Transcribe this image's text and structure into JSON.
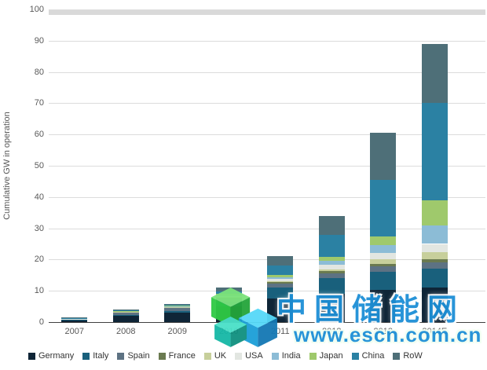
{
  "watermark": {
    "title": "中国储能网",
    "url": "www.escn.com.cn",
    "accent_blue": "#1d8fd6",
    "logo": "isometric-cubes"
  },
  "chart_data": {
    "type": "bar",
    "stacked": true,
    "title": "",
    "xlabel": "",
    "ylabel": "Cumulative GW in operation",
    "ylim": [
      0,
      100
    ],
    "ytick_step": 10,
    "grid": "horizontal",
    "legend_position": "bottom",
    "categories": [
      "2007",
      "2008",
      "2009",
      "2010",
      "2011",
      "2012",
      "2013",
      "2014E"
    ],
    "series": [
      {
        "name": "Germany",
        "color": "#0f2537",
        "values": [
          0.7,
          2.0,
          3.0,
          5.0,
          7.5,
          9.0,
          10.2,
          11.0
        ]
      },
      {
        "name": "Italy",
        "color": "#19607c",
        "values": [
          0.1,
          0.3,
          0.6,
          1.5,
          3.5,
          5.0,
          5.8,
          6.2
        ]
      },
      {
        "name": "Spain",
        "color": "#5d7283",
        "values": [
          0.1,
          0.9,
          1.0,
          1.1,
          1.3,
          1.6,
          1.8,
          2.0
        ]
      },
      {
        "name": "France",
        "color": "#6a7a50",
        "values": [
          0.05,
          0.05,
          0.1,
          0.3,
          0.5,
          0.7,
          0.9,
          1.0
        ]
      },
      {
        "name": "UK",
        "color": "#c7cf9b",
        "values": [
          0.05,
          0.05,
          0.1,
          0.1,
          0.2,
          0.5,
          1.5,
          2.2
        ]
      },
      {
        "name": "USA",
        "color": "#e2e6e1",
        "values": [
          0.1,
          0.2,
          0.3,
          0.5,
          0.9,
          1.5,
          2.0,
          2.6
        ]
      },
      {
        "name": "India",
        "color": "#8cbcd6",
        "values": [
          0.0,
          0.0,
          0.05,
          0.1,
          0.5,
          1.2,
          2.3,
          6.0
        ]
      },
      {
        "name": "Japan",
        "color": "#9fc96c",
        "values": [
          0.05,
          0.1,
          0.15,
          0.4,
          0.7,
          1.3,
          3.0,
          8.0
        ]
      },
      {
        "name": "China",
        "color": "#2b81a3",
        "values": [
          0.05,
          0.1,
          0.2,
          0.8,
          3.0,
          7.0,
          18.0,
          31.0
        ]
      },
      {
        "name": "RoW",
        "color": "#4e6f78",
        "values": [
          0.2,
          0.3,
          0.3,
          1.2,
          2.9,
          6.2,
          15.0,
          19.0
        ]
      }
    ]
  }
}
